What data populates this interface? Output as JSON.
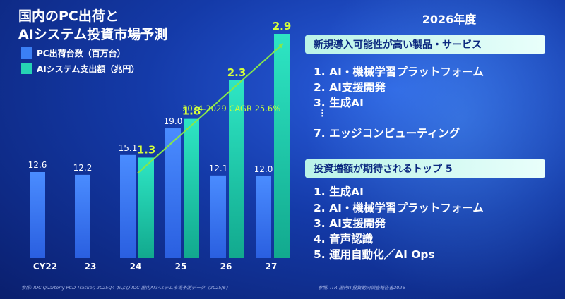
{
  "chart_data": {
    "type": "bar",
    "title_lines": [
      "国内のPC出荷と",
      "AIシステム投資市場予測"
    ],
    "categories": [
      "CY22",
      "23",
      "24",
      "25",
      "26",
      "27"
    ],
    "series": [
      {
        "name": "PC出荷台数（百万台）",
        "color": "#3b7ff5",
        "values": [
          12.6,
          12.2,
          15.1,
          19.0,
          12.1,
          12.0
        ],
        "labels": [
          "12.6",
          "12.2",
          "15.1",
          "19.0",
          "12.1",
          "12.0"
        ]
      },
      {
        "name": "AIシステム支出額（兆円）",
        "color": "#26d3b4",
        "values": [
          null,
          null,
          1.3,
          1.8,
          2.3,
          2.9
        ],
        "labels": [
          "",
          "",
          "1.3",
          "1.8",
          "2.3",
          "2.9"
        ]
      }
    ],
    "trend_annotation": "2024-2029 CAGR 25.6%",
    "legend_position": "top-left",
    "grid": false
  },
  "right_panel": {
    "title": "2026年度",
    "section1": {
      "header": "新規導入可能性が高い製品・サービス",
      "items": [
        "1. AI・機械学習プラットフォーム",
        "2. AI支援開発",
        "3. 生成AI",
        "⋮",
        "7.  エッジコンピューティング"
      ]
    },
    "section2": {
      "header": "投資増額が期待されるトップ 5",
      "items": [
        "1. 生成AI",
        "2. AI・機械学習プラットフォーム",
        "3. AI支援開発",
        "4. 音声認識",
        "5. 運用自動化／AI Ops"
      ]
    }
  },
  "footnotes": {
    "left": "参照: IDC Quarterly PCD Tracker, 2025Q4 および IDC 国内AIシステム市場予測データ（2025/6）",
    "right": "参照: ITR 国内IT投資動向調査報告書2026"
  },
  "colors": {
    "accent_line": "#86e84a",
    "value_label": "#d6ff3a",
    "cagr_text": "#c8ff3c"
  }
}
